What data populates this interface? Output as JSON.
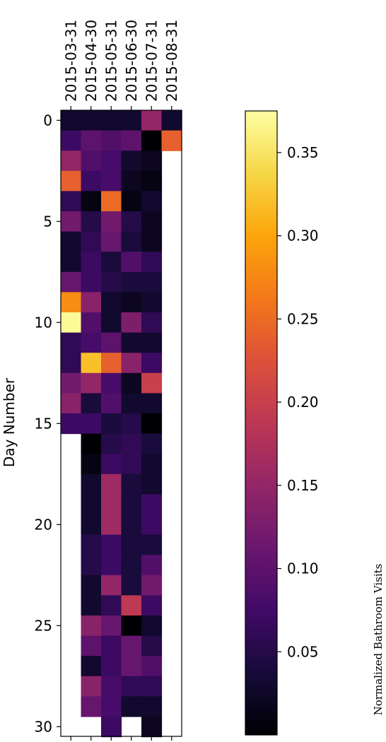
{
  "chart_data": {
    "type": "heatmap",
    "ylabel": "Day Number",
    "colorbar_label": "Normalized Bathroom Visits",
    "colormap": "inferno",
    "columns": [
      "2015-03-31",
      "2015-04-30",
      "2015-05-31",
      "2015-06-30",
      "2015-07-31",
      "2015-08-31"
    ],
    "y_ticks": [
      0,
      5,
      10,
      15,
      20,
      25,
      30
    ],
    "colorbar_ticks": [
      "0.05",
      "0.10",
      "0.15",
      "0.20",
      "0.25",
      "0.30",
      "0.35"
    ],
    "vmin": 0.0,
    "vmax": 0.375,
    "values": [
      [
        0.03,
        0.03,
        0.03,
        0.03,
        0.15,
        0.03
      ],
      [
        0.07,
        0.1,
        0.09,
        0.1,
        0.0,
        0.24
      ],
      [
        0.15,
        0.09,
        0.08,
        0.03,
        0.02,
        null
      ],
      [
        0.24,
        0.07,
        0.08,
        0.02,
        0.01,
        null
      ],
      [
        0.06,
        0.01,
        0.25,
        0.01,
        0.03,
        null
      ],
      [
        0.12,
        0.05,
        0.12,
        0.05,
        0.02,
        null
      ],
      [
        0.03,
        0.06,
        0.11,
        0.04,
        0.02,
        null
      ],
      [
        0.03,
        0.07,
        0.04,
        0.09,
        0.06,
        null
      ],
      [
        0.11,
        0.07,
        0.05,
        0.04,
        0.04,
        null
      ],
      [
        0.28,
        0.14,
        0.03,
        0.02,
        0.03,
        null
      ],
      [
        0.37,
        0.09,
        0.03,
        0.13,
        0.06,
        null
      ],
      [
        0.06,
        0.08,
        0.1,
        0.03,
        0.03,
        null
      ],
      [
        0.06,
        0.32,
        0.24,
        0.14,
        0.07,
        null
      ],
      [
        0.12,
        0.15,
        0.08,
        0.02,
        0.2,
        null
      ],
      [
        0.14,
        0.04,
        0.09,
        0.03,
        0.03,
        null
      ],
      [
        0.07,
        0.07,
        0.04,
        0.05,
        0.0,
        null
      ],
      [
        null,
        0.0,
        0.05,
        0.06,
        0.04,
        null
      ],
      [
        null,
        0.01,
        0.07,
        0.06,
        0.03,
        null
      ],
      [
        null,
        0.03,
        0.16,
        0.04,
        0.03,
        null
      ],
      [
        null,
        0.03,
        0.16,
        0.04,
        0.07,
        null
      ],
      [
        null,
        0.03,
        0.16,
        0.04,
        0.07,
        null
      ],
      [
        null,
        0.05,
        0.07,
        0.04,
        0.04,
        null
      ],
      [
        null,
        0.05,
        0.07,
        0.04,
        0.09,
        null
      ],
      [
        null,
        0.03,
        0.15,
        0.04,
        0.12,
        null
      ],
      [
        null,
        0.03,
        0.06,
        0.19,
        0.07,
        null
      ],
      [
        null,
        0.14,
        0.11,
        0.0,
        0.03,
        null
      ],
      [
        null,
        0.1,
        0.07,
        0.11,
        0.05,
        null
      ],
      [
        null,
        0.03,
        0.07,
        0.11,
        0.09,
        null
      ],
      [
        null,
        0.14,
        0.08,
        0.06,
        0.06,
        null
      ],
      [
        null,
        0.11,
        0.08,
        0.03,
        0.03,
        null
      ],
      [
        null,
        null,
        0.07,
        null,
        0.02,
        null
      ]
    ]
  }
}
